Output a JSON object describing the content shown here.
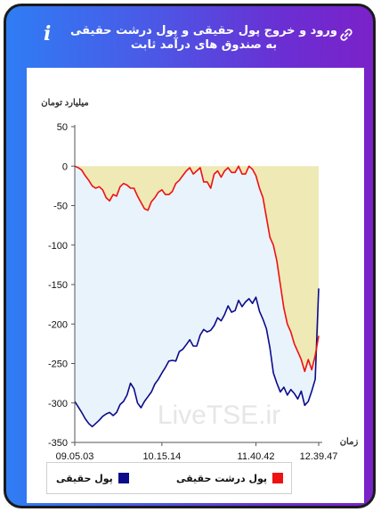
{
  "header": {
    "title": "ورود و خروج پول حقیقی و پول درشت حقیقی به صندوق های درآمد ثابت",
    "info_icon": "i",
    "link_icon": "link-icon"
  },
  "chart_data": {
    "type": "area",
    "ylabel": "میلیارد تومان",
    "xlabel": "زمان",
    "ylim": [
      -350,
      50
    ],
    "yticks": [
      50,
      0,
      -50,
      -100,
      -150,
      -200,
      -250,
      -300,
      -350
    ],
    "x_tick_labels": [
      "09.05.03",
      "10.15.14",
      "11.40.42",
      "12.39.47"
    ],
    "watermark": "LiveTSE.ir",
    "grid": false,
    "legend_position": "bottom",
    "series": [
      {
        "name": "پول حقیقی",
        "color": "#0b0b8c",
        "fill": "#e9f3fb",
        "values": [
          -298,
          -305,
          -312,
          -320,
          -326,
          -330,
          -326,
          -322,
          -317,
          -314,
          -312,
          -316,
          -312,
          -302,
          -298,
          -290,
          -275,
          -282,
          -300,
          -306,
          -298,
          -292,
          -286,
          -276,
          -270,
          -262,
          -255,
          -247,
          -246,
          -247,
          -235,
          -232,
          -226,
          -220,
          -228,
          -228,
          -214,
          -207,
          -210,
          -208,
          -202,
          -192,
          -196,
          -188,
          -177,
          -185,
          -183,
          -170,
          -178,
          -172,
          -168,
          -174,
          -166,
          -184,
          -194,
          -206,
          -230,
          -262,
          -275,
          -286,
          -280,
          -290,
          -283,
          -288,
          -295,
          -285,
          -303,
          -298,
          -285,
          -270,
          -155
        ]
      },
      {
        "name": "پول درشت حقیقی",
        "color": "#ee1111",
        "fill": "#efe9b6",
        "values": [
          0,
          -2,
          -5,
          -12,
          -18,
          -25,
          -28,
          -26,
          -30,
          -40,
          -44,
          -36,
          -38,
          -26,
          -22,
          -24,
          -28,
          -28,
          -38,
          -46,
          -54,
          -56,
          -45,
          -40,
          -33,
          -30,
          -36,
          -36,
          -32,
          -22,
          -18,
          -12,
          -6,
          -2,
          -10,
          -6,
          -2,
          -20,
          -20,
          -28,
          -10,
          -6,
          -14,
          -6,
          -2,
          -8,
          -8,
          0,
          -10,
          -10,
          0,
          -4,
          -12,
          -28,
          -40,
          -65,
          -90,
          -100,
          -120,
          -150,
          -180,
          -200,
          -210,
          -225,
          -235,
          -245,
          -260,
          -245,
          -258,
          -240,
          -215
        ]
      }
    ]
  }
}
